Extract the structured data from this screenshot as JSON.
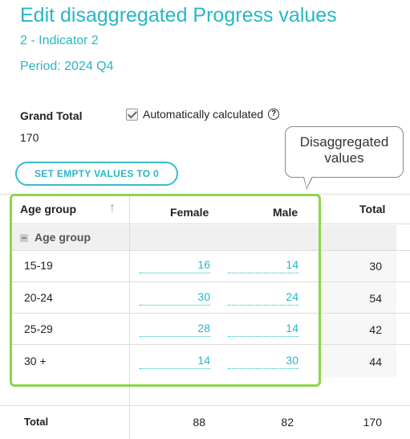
{
  "header": {
    "title": "Edit disaggregated Progress values",
    "indicator": "2 - Indicator 2",
    "period": "Period: 2024 Q4"
  },
  "grand_total": {
    "label": "Grand Total",
    "value": "170"
  },
  "auto_calc": {
    "label": "Automatically calculated",
    "checked": true,
    "help_icon": "question-circle-icon",
    "help_glyph": "?"
  },
  "set_empty_button": "SET EMPTY VALUES TO 0",
  "callout": {
    "line1": "Disaggregated",
    "line2": "values"
  },
  "table": {
    "columns": {
      "age_group": "Age group",
      "female": "Female",
      "male": "Male",
      "total": "Total"
    },
    "sort_icon": "arrow-up-icon",
    "sort_glyph": "↑",
    "group_label": "Age group",
    "rows": [
      {
        "label": "15-19",
        "female": "16",
        "male": "14",
        "total": "30"
      },
      {
        "label": "20-24",
        "female": "30",
        "male": "24",
        "total": "54"
      },
      {
        "label": "25-29",
        "female": "28",
        "male": "14",
        "total": "42"
      },
      {
        "label": "30 +",
        "female": "14",
        "male": "30",
        "total": "44"
      }
    ],
    "footer": {
      "label": "Total",
      "female": "88",
      "male": "82",
      "total": "170"
    }
  },
  "colors": {
    "accent": "#29b6c6",
    "highlight": "#8dd44a"
  }
}
